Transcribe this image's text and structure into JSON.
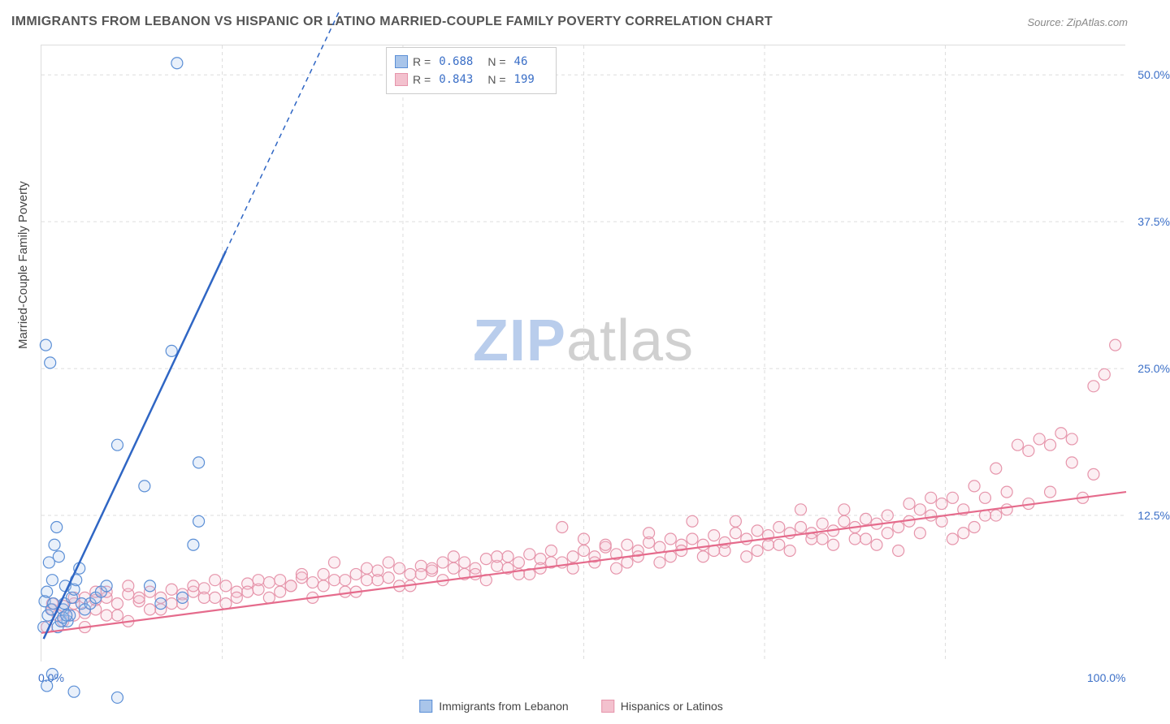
{
  "title": "IMMIGRANTS FROM LEBANON VS HISPANIC OR LATINO MARRIED-COUPLE FAMILY POVERTY CORRELATION CHART",
  "source": "Source: ZipAtlas.com",
  "ylabel": "Married-Couple Family Poverty",
  "watermark_zip": "ZIP",
  "watermark_atlas": "atlas",
  "chart": {
    "type": "scatter",
    "background_color": "#ffffff",
    "grid_color": "#dddddd",
    "grid_dash": "4,4",
    "xlim": [
      0,
      100
    ],
    "ylim": [
      0,
      52.5
    ],
    "xtick_labels": [
      "0.0%",
      "100.0%"
    ],
    "xtick_positions": [
      0,
      100
    ],
    "xgrid_positions": [
      16.67,
      33.33,
      50,
      66.67,
      83.33
    ],
    "ytick_labels": [
      "12.5%",
      "25.0%",
      "37.5%",
      "50.0%"
    ],
    "ytick_positions": [
      12.5,
      25,
      37.5,
      50
    ],
    "tick_label_color": "#3b6fc7",
    "tick_fontsize": 14,
    "ylabel_fontsize": 15,
    "ylabel_color": "#444444",
    "marker_radius": 7,
    "marker_stroke_width": 1.2,
    "marker_fill_opacity": 0.25,
    "series": [
      {
        "name": "Immigrants from Lebanon",
        "short": "lebanon",
        "color": "#5b8fd6",
        "fill": "#a9c5ea",
        "r": "0.688",
        "n": "46",
        "trend": {
          "x1": 0.2,
          "y1": 2.0,
          "x2": 17.0,
          "y2": 35.0
        },
        "trend_dash": {
          "x1": 17.0,
          "y1": 35.0,
          "x2": 27.5,
          "y2": 55.5
        },
        "line_color": "#2f66c4",
        "line_width": 2.5,
        "points": [
          [
            0.3,
            5.2
          ],
          [
            0.5,
            6.0
          ],
          [
            0.7,
            8.5
          ],
          [
            1.0,
            7.0
          ],
          [
            1.2,
            10.0
          ],
          [
            1.4,
            11.5
          ],
          [
            1.6,
            9.0
          ],
          [
            2.0,
            4.5
          ],
          [
            2.1,
            5.0
          ],
          [
            2.2,
            6.5
          ],
          [
            2.4,
            3.5
          ],
          [
            2.6,
            4.0
          ],
          [
            2.8,
            5.5
          ],
          [
            3.0,
            6.2
          ],
          [
            3.2,
            7.0
          ],
          [
            0.4,
            27.0
          ],
          [
            0.8,
            25.5
          ],
          [
            3.5,
            8.0
          ],
          [
            3.7,
            5.0
          ],
          [
            4.0,
            4.5
          ],
          [
            4.5,
            5.0
          ],
          [
            5.0,
            5.5
          ],
          [
            5.5,
            6.0
          ],
          [
            6.0,
            6.5
          ],
          [
            1.0,
            -1.0
          ],
          [
            0.5,
            -2.0
          ],
          [
            3.0,
            -2.5
          ],
          [
            7.0,
            -3.0
          ],
          [
            12.5,
            51.0
          ],
          [
            12.0,
            26.5
          ],
          [
            14.5,
            12.0
          ],
          [
            14.5,
            17.0
          ],
          [
            9.5,
            15.0
          ],
          [
            7.0,
            18.5
          ],
          [
            13.0,
            5.5
          ],
          [
            14.0,
            10.0
          ],
          [
            10.0,
            6.5
          ],
          [
            11.0,
            5.0
          ],
          [
            1.5,
            3.0
          ],
          [
            1.8,
            3.5
          ],
          [
            2.0,
            3.8
          ],
          [
            2.3,
            4.0
          ],
          [
            0.2,
            3.0
          ],
          [
            0.6,
            4.0
          ],
          [
            0.9,
            4.5
          ],
          [
            1.1,
            5.0
          ]
        ]
      },
      {
        "name": "Hispanics or Latinos",
        "short": "hispanic",
        "color": "#e695ab",
        "fill": "#f3c1ce",
        "r": "0.843",
        "n": "199",
        "trend": {
          "x1": 0,
          "y1": 2.5,
          "x2": 100,
          "y2": 14.5
        },
        "line_color": "#e56b8c",
        "line_width": 2.2,
        "points": [
          [
            1,
            4.5
          ],
          [
            2,
            4.8
          ],
          [
            3,
            5.0
          ],
          [
            4,
            4.2
          ],
          [
            5,
            5.3
          ],
          [
            6,
            5.5
          ],
          [
            7,
            5.0
          ],
          [
            8,
            5.8
          ],
          [
            9,
            5.2
          ],
          [
            10,
            6.0
          ],
          [
            11,
            5.5
          ],
          [
            12,
            6.2
          ],
          [
            13,
            5.8
          ],
          [
            14,
            6.0
          ],
          [
            15,
            6.3
          ],
          [
            16,
            5.5
          ],
          [
            17,
            6.5
          ],
          [
            18,
            6.0
          ],
          [
            19,
            6.7
          ],
          [
            20,
            6.2
          ],
          [
            21,
            6.8
          ],
          [
            22,
            7.0
          ],
          [
            23,
            6.5
          ],
          [
            24,
            7.2
          ],
          [
            25,
            6.8
          ],
          [
            26,
            7.5
          ],
          [
            27,
            8.5
          ],
          [
            28,
            7.0
          ],
          [
            29,
            7.5
          ],
          [
            30,
            7.0
          ],
          [
            31,
            7.8
          ],
          [
            32,
            7.2
          ],
          [
            33,
            8.0
          ],
          [
            34,
            7.5
          ],
          [
            35,
            8.2
          ],
          [
            36,
            7.8
          ],
          [
            37,
            8.5
          ],
          [
            38,
            8.0
          ],
          [
            39,
            8.5
          ],
          [
            40,
            8.0
          ],
          [
            41,
            8.8
          ],
          [
            42,
            8.2
          ],
          [
            43,
            9.0
          ],
          [
            44,
            8.5
          ],
          [
            45,
            9.2
          ],
          [
            46,
            8.8
          ],
          [
            47,
            9.5
          ],
          [
            48,
            11.5
          ],
          [
            49,
            9.0
          ],
          [
            50,
            9.5
          ],
          [
            51,
            9.0
          ],
          [
            52,
            9.8
          ],
          [
            53,
            9.2
          ],
          [
            54,
            10.0
          ],
          [
            55,
            9.5
          ],
          [
            56,
            10.2
          ],
          [
            57,
            9.8
          ],
          [
            58,
            10.5
          ],
          [
            59,
            10.0
          ],
          [
            60,
            10.5
          ],
          [
            61,
            10.0
          ],
          [
            62,
            10.8
          ],
          [
            63,
            10.2
          ],
          [
            64,
            11.0
          ],
          [
            65,
            10.5
          ],
          [
            66,
            11.2
          ],
          [
            67,
            10.8
          ],
          [
            68,
            11.5
          ],
          [
            69,
            11.0
          ],
          [
            70,
            11.5
          ],
          [
            71,
            11.0
          ],
          [
            72,
            11.8
          ],
          [
            73,
            11.2
          ],
          [
            74,
            12.0
          ],
          [
            75,
            11.5
          ],
          [
            76,
            12.2
          ],
          [
            77,
            11.8
          ],
          [
            78,
            12.5
          ],
          [
            79,
            9.5
          ],
          [
            80,
            12.0
          ],
          [
            81,
            11.0
          ],
          [
            82,
            12.5
          ],
          [
            83,
            13.5
          ],
          [
            84,
            10.5
          ],
          [
            85,
            13.0
          ],
          [
            86,
            11.5
          ],
          [
            87,
            14.0
          ],
          [
            88,
            12.5
          ],
          [
            89,
            14.5
          ],
          [
            90,
            18.5
          ],
          [
            91,
            18.0
          ],
          [
            92,
            19.0
          ],
          [
            93,
            18.5
          ],
          [
            94,
            19.5
          ],
          [
            95,
            17.0
          ],
          [
            96,
            14.0
          ],
          [
            97,
            23.5
          ],
          [
            98,
            24.5
          ],
          [
            99,
            27.0
          ],
          [
            84,
            14.0
          ],
          [
            3,
            4.0
          ],
          [
            5,
            4.5
          ],
          [
            7,
            4.0
          ],
          [
            9,
            5.5
          ],
          [
            11,
            4.5
          ],
          [
            13,
            5.0
          ],
          [
            15,
            5.5
          ],
          [
            17,
            5.0
          ],
          [
            19,
            6.0
          ],
          [
            21,
            5.5
          ],
          [
            23,
            6.5
          ],
          [
            25,
            5.5
          ],
          [
            27,
            7.0
          ],
          [
            29,
            6.0
          ],
          [
            31,
            7.0
          ],
          [
            33,
            6.5
          ],
          [
            35,
            7.5
          ],
          [
            37,
            7.0
          ],
          [
            39,
            7.5
          ],
          [
            41,
            7.0
          ],
          [
            43,
            8.0
          ],
          [
            45,
            7.5
          ],
          [
            47,
            8.5
          ],
          [
            49,
            8.0
          ],
          [
            51,
            8.5
          ],
          [
            53,
            8.0
          ],
          [
            55,
            9.0
          ],
          [
            57,
            8.5
          ],
          [
            59,
            9.5
          ],
          [
            61,
            9.0
          ],
          [
            63,
            9.5
          ],
          [
            65,
            9.0
          ],
          [
            67,
            10.0
          ],
          [
            69,
            9.5
          ],
          [
            71,
            10.5
          ],
          [
            73,
            10.0
          ],
          [
            75,
            10.5
          ],
          [
            77,
            10.0
          ],
          [
            79,
            11.5
          ],
          [
            81,
            13.0
          ],
          [
            83,
            12.0
          ],
          [
            85,
            11.0
          ],
          [
            87,
            12.5
          ],
          [
            89,
            13.0
          ],
          [
            91,
            13.5
          ],
          [
            93,
            14.5
          ],
          [
            95,
            19.0
          ],
          [
            97,
            16.0
          ],
          [
            86,
            15.0
          ],
          [
            88,
            16.5
          ],
          [
            4,
            5.5
          ],
          [
            6,
            4.0
          ],
          [
            8,
            6.5
          ],
          [
            10,
            4.5
          ],
          [
            12,
            5.0
          ],
          [
            14,
            6.5
          ],
          [
            16,
            7.0
          ],
          [
            18,
            5.5
          ],
          [
            20,
            7.0
          ],
          [
            22,
            6.0
          ],
          [
            24,
            7.5
          ],
          [
            26,
            6.5
          ],
          [
            28,
            6.0
          ],
          [
            30,
            8.0
          ],
          [
            32,
            8.5
          ],
          [
            34,
            6.5
          ],
          [
            36,
            8.0
          ],
          [
            38,
            9.0
          ],
          [
            40,
            7.5
          ],
          [
            42,
            9.0
          ],
          [
            44,
            7.5
          ],
          [
            46,
            8.0
          ],
          [
            48,
            8.5
          ],
          [
            50,
            10.5
          ],
          [
            52,
            10.0
          ],
          [
            54,
            8.5
          ],
          [
            56,
            11.0
          ],
          [
            58,
            9.0
          ],
          [
            60,
            12.0
          ],
          [
            62,
            9.5
          ],
          [
            64,
            12.0
          ],
          [
            66,
            9.5
          ],
          [
            68,
            10.0
          ],
          [
            70,
            13.0
          ],
          [
            72,
            10.5
          ],
          [
            74,
            13.0
          ],
          [
            76,
            10.5
          ],
          [
            78,
            11.0
          ],
          [
            80,
            13.5
          ],
          [
            82,
            14.0
          ],
          [
            2,
            3.5
          ],
          [
            4,
            3.0
          ],
          [
            6,
            6.0
          ],
          [
            8,
            3.5
          ],
          [
            1,
            5.0
          ],
          [
            3,
            5.5
          ],
          [
            5,
            6.0
          ],
          [
            0.5,
            3.0
          ],
          [
            1.5,
            4.0
          ]
        ]
      }
    ]
  },
  "legend": {
    "r_label": "R =",
    "n_label": "N ="
  },
  "bottom_legend": {
    "series1_label": "Immigrants from Lebanon",
    "series2_label": "Hispanics or Latinos"
  }
}
